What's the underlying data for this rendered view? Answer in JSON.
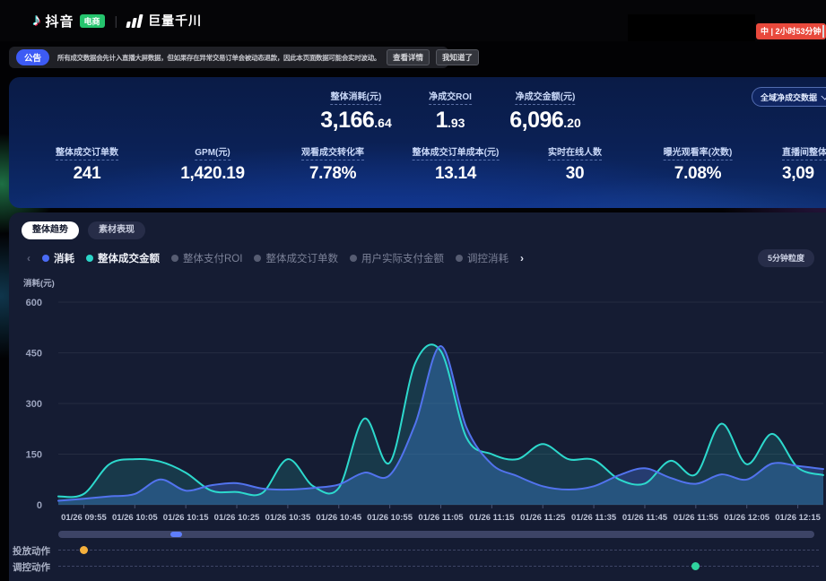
{
  "header": {
    "brand": {
      "douyin": "抖音",
      "ecommerce_badge": "电商",
      "divider": "|",
      "qianchuan": "巨量千川"
    },
    "live_badge": "中 | 2小时53分钟"
  },
  "notice": {
    "badge": "公告",
    "text": "所有成交数据会先计入直播大屏数据，但如果存在异常交易订单会被动态退款，因此本页面数据可能会实时波动。",
    "detail_button": "查看详情",
    "ack_button": "我知道了"
  },
  "metrics": {
    "scope_selector": "全域净成交数据",
    "primary": [
      {
        "label": "整体消耗(元)",
        "int": "3,166",
        "dec": ".64"
      },
      {
        "label": "净成交ROI",
        "int": "1",
        "dec": ".93"
      },
      {
        "label": "净成交金额(元)",
        "int": "6,096",
        "dec": ".20"
      }
    ],
    "secondary": [
      {
        "label": "整体成交订单数",
        "value": "241"
      },
      {
        "label": "GPM(元)",
        "value": "1,420.19"
      },
      {
        "label": "观看成交转化率",
        "value": "7.78%"
      },
      {
        "label": "整体成交订单成本(元)",
        "value": "13.14"
      },
      {
        "label": "实时在线人数",
        "value": "30"
      },
      {
        "label": "曝光观看率(次数)",
        "value": "7.08%"
      },
      {
        "label": "直播间整体成",
        "value": "3,09"
      }
    ]
  },
  "tabs": [
    {
      "label": "整体趋势",
      "active": true
    },
    {
      "label": "素材表现",
      "active": false
    }
  ],
  "legend": {
    "prev_icon": "‹",
    "next_icon": "›",
    "items": [
      {
        "label": "消耗",
        "color": "#4a6bf5",
        "active": true
      },
      {
        "label": "整体成交金额",
        "color": "#2bd6c9",
        "active": true
      },
      {
        "label": "整体支付ROI",
        "color": "#565c72",
        "active": false
      },
      {
        "label": "整体成交订单数",
        "color": "#565c72",
        "active": false
      },
      {
        "label": "用户实际支付金额",
        "color": "#565c72",
        "active": false
      },
      {
        "label": "调控消耗",
        "color": "#565c72",
        "active": false
      }
    ]
  },
  "granularity_label": "5分钟粒度",
  "chart_data": {
    "type": "line",
    "ylabel": "消耗(元)",
    "ylim": [
      0,
      600
    ],
    "yticks": [
      0,
      150,
      300,
      450,
      600
    ],
    "grid": true,
    "legend_position": "top-left",
    "x": [
      "09:50",
      "09:55",
      "10:00",
      "10:05",
      "10:10",
      "10:15",
      "10:20",
      "10:25",
      "10:30",
      "10:35",
      "10:40",
      "10:45",
      "10:50",
      "10:55",
      "11:00",
      "11:05",
      "11:10",
      "11:15",
      "11:20",
      "11:25",
      "11:30",
      "11:35",
      "11:40",
      "11:45",
      "11:50",
      "11:55",
      "12:00",
      "12:05",
      "12:10",
      "12:15",
      "12:20"
    ],
    "x_tick_labels": [
      "01/26 09:55",
      "01/26 10:05",
      "01/26 10:15",
      "01/26 10:25",
      "01/26 10:35",
      "01/26 10:45",
      "01/26 10:55",
      "01/26 11:05",
      "01/26 11:15",
      "01/26 11:25",
      "01/26 11:35",
      "01/26 11:45",
      "01/26 11:55",
      "01/26 12:05",
      "01/26 12:15"
    ],
    "series": [
      {
        "name": "消耗",
        "color": "#5273ee",
        "fill": "rgba(62,104,198,0.42)",
        "values": [
          12,
          18,
          25,
          32,
          75,
          42,
          58,
          64,
          48,
          45,
          50,
          60,
          95,
          88,
          240,
          470,
          230,
          120,
          85,
          55,
          45,
          55,
          88,
          108,
          80,
          62,
          90,
          75,
          122,
          115,
          106
        ]
      },
      {
        "name": "整体成交金额",
        "color": "#2dd9cd",
        "fill": "rgba(44,214,202,0.16)",
        "values": [
          25,
          32,
          120,
          135,
          128,
          95,
          42,
          38,
          35,
          135,
          55,
          50,
          255,
          125,
          420,
          455,
          200,
          150,
          135,
          180,
          135,
          133,
          75,
          63,
          130,
          90,
          240,
          120,
          210,
          110,
          88
        ]
      }
    ]
  },
  "action_rows": [
    {
      "label": "投放动作",
      "marker": {
        "time": "09:55",
        "color": "#f5b03c"
      }
    },
    {
      "label": "调控动作",
      "marker": {
        "time": "11:55",
        "color": "#2fd39f"
      }
    }
  ]
}
